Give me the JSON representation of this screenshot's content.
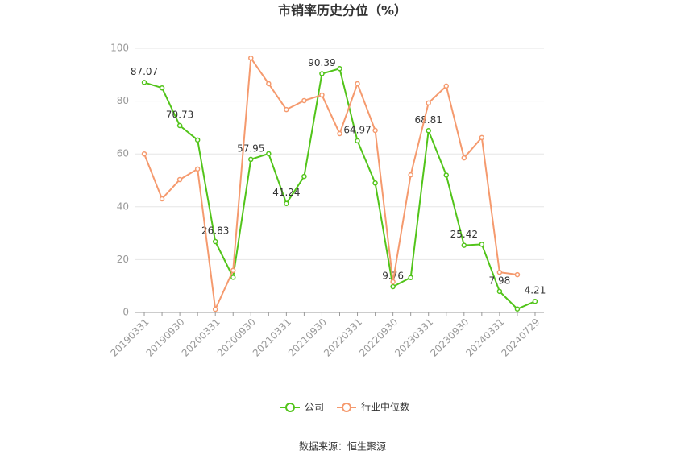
{
  "chart_data": {
    "type": "line",
    "title": "市销率历史分位（%）",
    "categories": [
      "20190331",
      null,
      "20190930",
      null,
      "20200331",
      null,
      "20200930",
      null,
      "20210331",
      null,
      "20210930",
      null,
      "20220331",
      null,
      "20220930",
      null,
      "20230331",
      null,
      "20230930",
      null,
      "20240331",
      null,
      "20240729"
    ],
    "series": [
      {
        "name": "公司",
        "color": "#52c41a",
        "values": [
          87.07,
          85,
          70.73,
          65.3,
          26.83,
          13.3,
          57.95,
          60.1,
          41.24,
          51.5,
          90.39,
          92.3,
          64.97,
          49,
          9.76,
          13.2,
          68.81,
          52,
          25.42,
          25.8,
          7.98,
          1.3,
          4.21
        ],
        "value_labels": [
          "87.07",
          null,
          "70.73",
          null,
          "26.83",
          null,
          "57.95",
          null,
          "41.24",
          null,
          "90.39",
          null,
          "64.97",
          null,
          "9.76",
          null,
          "68.81",
          null,
          "25.42",
          null,
          "7.98",
          null,
          "4.21"
        ]
      },
      {
        "name": "行业中位数",
        "color": "#f59a6e",
        "values": [
          60,
          43,
          50.3,
          54.3,
          1.2,
          15.9,
          96.3,
          86.6,
          76.8,
          80.2,
          82.3,
          67.7,
          86.6,
          68.9,
          11.6,
          52.1,
          79.3,
          85.7,
          58.5,
          66.2,
          15.2,
          14.3,
          null
        ]
      }
    ],
    "ylim": [
      0,
      100
    ],
    "yticks": [
      0,
      20,
      40,
      60,
      80,
      100
    ],
    "grid": true,
    "legend": "bottom",
    "source": "数据来源：恒生聚源"
  }
}
